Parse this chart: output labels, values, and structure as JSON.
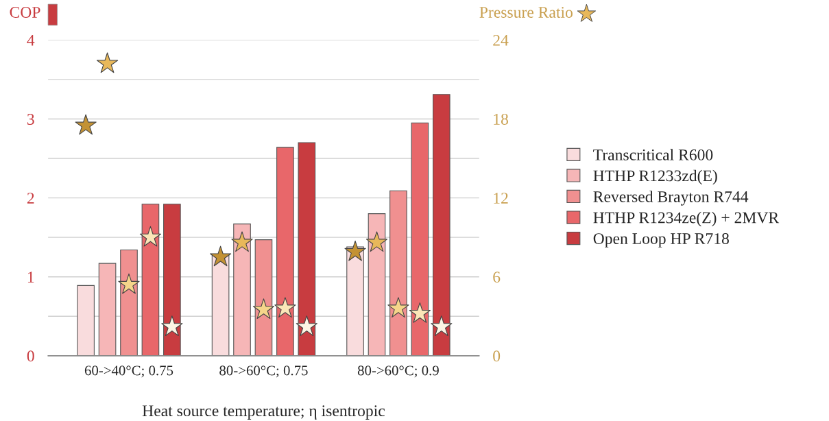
{
  "chart_data": {
    "type": "bar",
    "xlabel": "Heat source temperature; η isentropic",
    "ylabel": "COP",
    "y2label": "Pressure Ratio",
    "categories": [
      "60->40°C; 0.75",
      "80->60°C; 0.75",
      "80->60°C; 0.9"
    ],
    "series": [
      {
        "name": "Transcritical R600",
        "color": "#f9dcdd",
        "values": [
          0.89,
          1.28,
          1.38
        ]
      },
      {
        "name": "HTHP R1233zd(E)",
        "color": "#f6b6b7",
        "values": [
          1.17,
          1.67,
          1.8
        ]
      },
      {
        "name": "Reversed Brayton R744",
        "color": "#f09090",
        "values": [
          1.34,
          1.47,
          2.09
        ]
      },
      {
        "name": "HTHP R1234ze(Z) + 2MVR",
        "color": "#e8676a",
        "values": [
          1.92,
          2.64,
          2.95
        ]
      },
      {
        "name": "Open Loop HP R718",
        "color": "#c83c40",
        "values": [
          1.92,
          2.7,
          3.31
        ]
      },
      {
        "type": "scatter",
        "axis": "y2",
        "marker": "star",
        "color": "#c39234",
        "values": [
          17.5,
          7.5,
          7.9
        ]
      },
      {
        "type": "scatter",
        "axis": "y2",
        "marker": "star",
        "color": "#e8b85a",
        "values": [
          22.2,
          8.6,
          8.6
        ]
      },
      {
        "type": "scatter",
        "axis": "y2",
        "marker": "star",
        "color": "#f5d58a",
        "values": [
          5.4,
          3.5,
          3.6
        ]
      },
      {
        "type": "scatter",
        "axis": "y2",
        "marker": "star",
        "color": "#fbe6b8",
        "values": [
          9.0,
          3.6,
          3.2
        ]
      },
      {
        "type": "scatter",
        "axis": "y2",
        "marker": "star",
        "color": "#fdf5e4",
        "values": [
          2.2,
          2.2,
          2.2
        ]
      }
    ],
    "ylim": [
      0,
      4
    ],
    "yticks": [
      0,
      {
        "value": 0.5,
        "label": null
      },
      1,
      {
        "value": 1.5,
        "label": null
      },
      2,
      {
        "value": 2.5,
        "label": null
      },
      3,
      {
        "value": 3.5,
        "label": null
      },
      4
    ],
    "y2lim": [
      0,
      24
    ],
    "y2ticks": [
      0,
      6,
      12,
      18,
      24
    ],
    "grid": "y",
    "legend": "right"
  }
}
